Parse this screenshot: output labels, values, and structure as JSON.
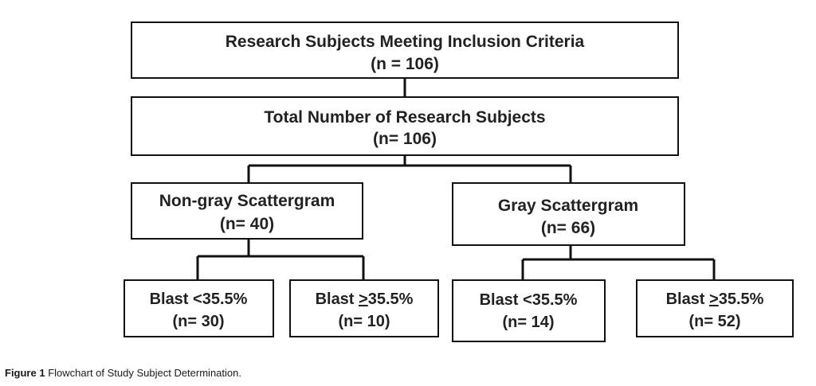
{
  "nodes": {
    "inclusion": {
      "line1": "Research Subjects Meeting Inclusion Criteria",
      "line2": "(n = 106)"
    },
    "total": {
      "line1": "Total Number of Research Subjects",
      "line2": "(n= 106)"
    },
    "nongray": {
      "line1": "Non-gray Scattergram",
      "line2": "(n= 40)"
    },
    "gray": {
      "line1": "Gray Scattergram",
      "line2": "(n= 66)"
    },
    "ng_low": {
      "line1_prefix": "Blast ",
      "line1_symbol": "<",
      "line1_value": "35.5%",
      "line2": "(n= 30)"
    },
    "ng_high": {
      "line1_prefix": "Blast ",
      "line1_symbol": ">",
      "line1_value": "35.5%",
      "line2": "(n= 10)"
    },
    "g_low": {
      "line1_prefix": "Blast ",
      "line1_symbol": "<",
      "line1_value": "35.5%",
      "line2": "(n= 14)"
    },
    "g_high": {
      "line1_prefix": "Blast ",
      "line1_symbol": ">",
      "line1_value": "35.5%",
      "line2": "(n= 52)"
    }
  },
  "caption": {
    "label": "Figure 1",
    "text": "Flowchart of Study Subject Determination."
  }
}
